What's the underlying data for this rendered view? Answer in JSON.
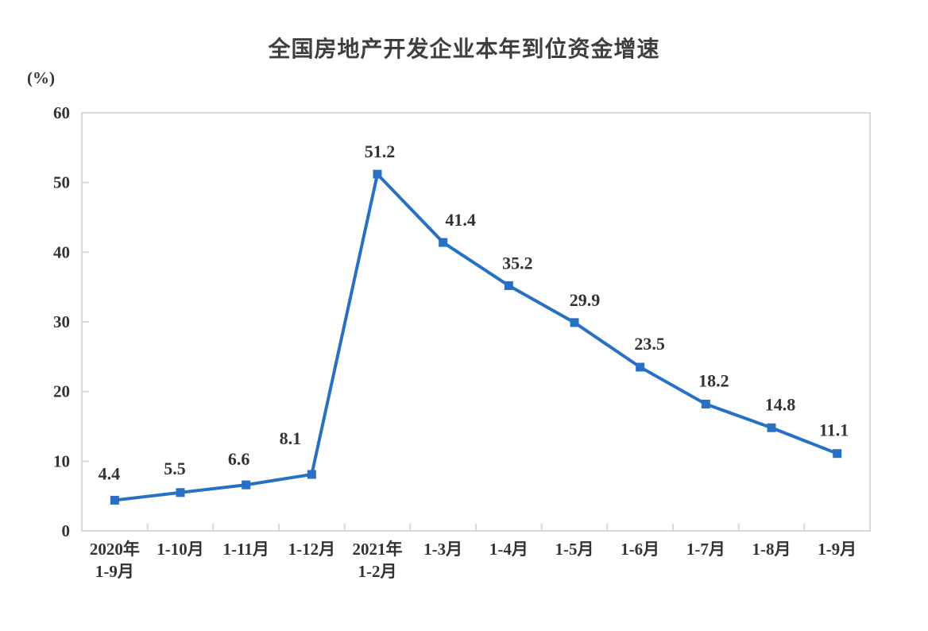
{
  "chart_data": {
    "type": "line",
    "title": "全国房地产开发企业本年到位资金增速",
    "unit": "(%)",
    "categories": [
      [
        "2020年",
        "1-9月"
      ],
      [
        "1-10月"
      ],
      [
        "1-11月"
      ],
      [
        "1-12月"
      ],
      [
        "2021年",
        "1-2月"
      ],
      [
        "1-3月"
      ],
      [
        "1-4月"
      ],
      [
        "1-5月"
      ],
      [
        "1-6月"
      ],
      [
        "1-7月"
      ],
      [
        "1-8月"
      ],
      [
        "1-9月"
      ]
    ],
    "values": [
      4.4,
      5.5,
      6.6,
      8.1,
      51.2,
      41.4,
      35.2,
      29.9,
      23.5,
      18.2,
      14.8,
      11.1
    ],
    "yticks": [
      0,
      10,
      20,
      30,
      40,
      50,
      60
    ],
    "ylim": [
      0,
      60
    ],
    "grid": false,
    "legend": "none",
    "marker": "square",
    "line_color": "#2770c4",
    "border_color": "#d9d9d9",
    "text_color": "#333333",
    "label_dx": [
      -7,
      -7,
      -9,
      -27,
      3,
      22,
      11,
      13,
      12,
      10,
      11,
      -4
    ],
    "label_dy": [
      -34,
      -31,
      -33,
      -46,
      -29,
      -29,
      -29,
      -29,
      -30,
      -30,
      -30,
      -30
    ]
  }
}
